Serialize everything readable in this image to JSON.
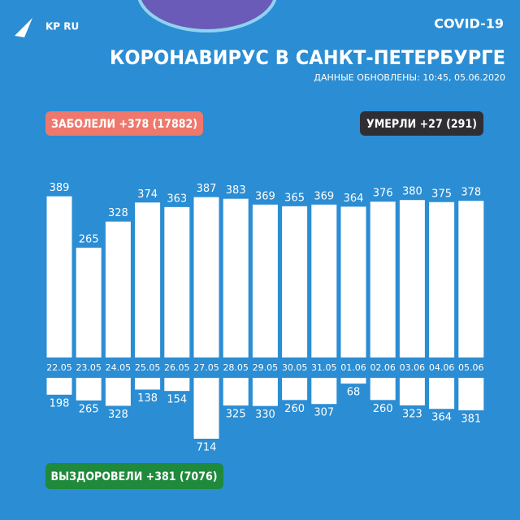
{
  "logo": "KP RU",
  "tag": "COVID-19",
  "chart_data": {
    "type": "bar",
    "title": "КОРОНАВИРУС В САНКТ-ПЕТЕРБУРГЕ",
    "subtitle": "ДАННЫЕ ОБНОВЛЕНЫ: 10:45, 05.06.2020",
    "annotations": [
      "ЗАБОЛЕЛИ +378 (17882)",
      "УМЕРЛИ +27 (291)",
      "ВЫЗДОРОВЕЛИ +381 (7076)"
    ],
    "categories": [
      "22.05",
      "23.05",
      "24.05",
      "25.05",
      "26.05",
      "27.05",
      "28.05",
      "29.05",
      "30.05",
      "31.05",
      "01.06",
      "02.06",
      "03.06",
      "04.06",
      "05.06"
    ],
    "series": [
      {
        "name": "ЗАБОЛЕЛИ",
        "color": "#ffffff",
        "values": [
          389,
          265,
          328,
          374,
          363,
          387,
          383,
          369,
          365,
          369,
          364,
          376,
          380,
          375,
          378
        ]
      },
      {
        "name": "ВЫЗДОРОВЕЛИ",
        "color": "#ffffff",
        "axis": "y2",
        "values": [
          198,
          265,
          328,
          138,
          154,
          714,
          325,
          330,
          260,
          307,
          68,
          260,
          323,
          364,
          381
        ]
      }
    ],
    "ylim": [
      0,
      400
    ],
    "y2lim": [
      0,
      800
    ],
    "y2_inverted": true
  }
}
